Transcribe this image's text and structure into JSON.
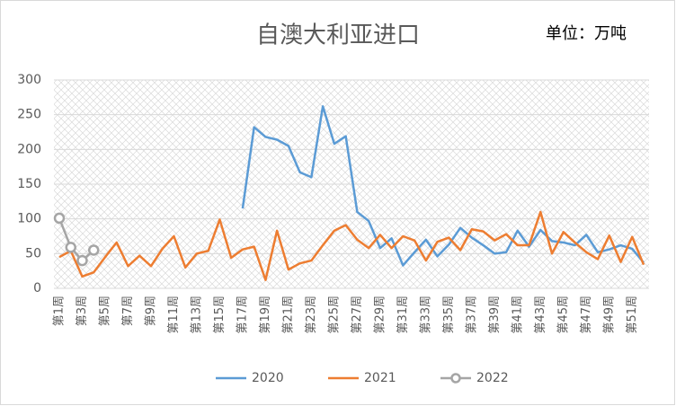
{
  "chart_data": {
    "type": "line",
    "title": "自澳大利亚进口",
    "annotation": "单位：万吨",
    "categories": [
      "第1周",
      null,
      "第3周",
      null,
      "第5周",
      null,
      "第7周",
      null,
      "第9周",
      null,
      "第11周",
      null,
      "第13周",
      null,
      "第15周",
      null,
      "第17周",
      null,
      "第19周",
      null,
      "第21周",
      null,
      "第23周",
      null,
      "第25周",
      null,
      "第27周",
      null,
      "第29周",
      null,
      "第31周",
      null,
      "第33周",
      null,
      "第35周",
      null,
      "第37周",
      null,
      "第39周",
      null,
      "第41周",
      null,
      "第43周",
      null,
      "第45周",
      null,
      "第47周",
      null,
      "第49周",
      null,
      "第51周",
      null
    ],
    "series": [
      {
        "name": "2020",
        "color": "#5b9bd5",
        "values": [
          null,
          null,
          null,
          null,
          null,
          null,
          null,
          null,
          null,
          null,
          null,
          null,
          null,
          null,
          null,
          null,
          115,
          232,
          218,
          214,
          205,
          167,
          160,
          262,
          208,
          219,
          110,
          97,
          58,
          72,
          33,
          52,
          70,
          46,
          63,
          87,
          73,
          62,
          50,
          52,
          83,
          60,
          84,
          68,
          66,
          62,
          77,
          52,
          56,
          62,
          57,
          37
        ]
      },
      {
        "name": "2021",
        "color": "#ed7d31",
        "values": [
          45,
          54,
          17,
          23,
          45,
          66,
          32,
          47,
          32,
          57,
          75,
          30,
          50,
          54,
          99,
          44,
          56,
          60,
          12,
          83,
          27,
          36,
          40,
          62,
          83,
          91,
          70,
          58,
          77,
          58,
          75,
          69,
          40,
          67,
          73,
          55,
          85,
          82,
          69,
          78,
          62,
          62,
          110,
          50,
          81,
          66,
          52,
          42,
          76,
          38,
          74,
          34
        ]
      },
      {
        "name": "2022",
        "color": "#a5a5a5",
        "marker": true,
        "values": [
          101,
          59,
          40,
          55,
          null,
          null,
          null,
          null,
          null,
          null,
          null,
          null,
          null,
          null,
          null,
          null,
          null,
          null,
          null,
          null,
          null,
          null,
          null,
          null,
          null,
          null,
          null,
          null,
          null,
          null,
          null,
          null,
          null,
          null,
          null,
          null,
          null,
          null,
          null,
          null,
          null,
          null,
          null,
          null,
          null,
          null,
          null,
          null,
          null,
          null,
          null,
          null
        ]
      }
    ],
    "ylim": [
      0,
      300
    ],
    "yticks": [
      0,
      50,
      100,
      150,
      200,
      250,
      300
    ],
    "grid": true,
    "legend": "bottom"
  }
}
